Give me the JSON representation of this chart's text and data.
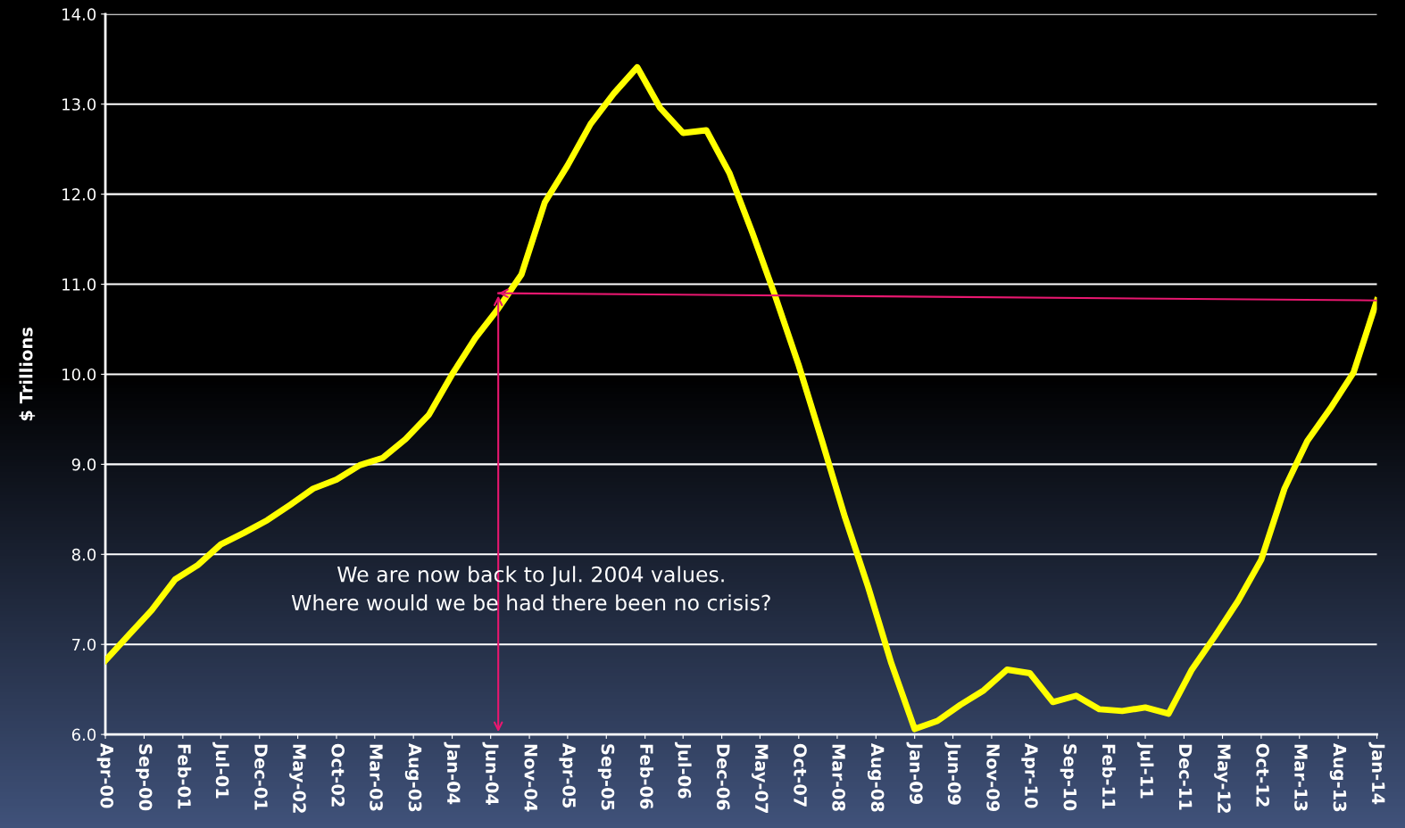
{
  "chart_data": {
    "type": "line",
    "ylabel": "$ Trillions",
    "x": [
      "2000-04",
      "2000-07",
      "2000-10",
      "2001-01",
      "2001-04",
      "2001-07",
      "2001-10",
      "2002-01",
      "2002-04",
      "2002-07",
      "2002-10",
      "2003-01",
      "2003-04",
      "2003-07",
      "2003-10",
      "2004-01",
      "2004-04",
      "2004-07",
      "2004-10",
      "2005-01",
      "2005-04",
      "2005-07",
      "2005-10",
      "2006-01",
      "2006-04",
      "2006-07",
      "2006-10",
      "2007-01",
      "2007-04",
      "2007-07",
      "2007-10",
      "2008-01",
      "2008-04",
      "2008-07",
      "2008-10",
      "2009-01",
      "2009-04",
      "2009-07",
      "2009-10",
      "2010-01",
      "2010-04",
      "2010-07",
      "2010-10",
      "2011-01",
      "2011-04",
      "2011-07",
      "2011-10",
      "2012-01",
      "2012-04",
      "2012-07",
      "2012-10",
      "2013-01",
      "2013-04",
      "2013-07",
      "2013-10",
      "2014-01"
    ],
    "series": [
      {
        "color": "#ffff00",
        "values": [
          6.82,
          7.1,
          7.38,
          7.72,
          7.88,
          8.11,
          8.24,
          8.38,
          8.55,
          8.73,
          8.83,
          8.99,
          9.07,
          9.28,
          9.55,
          10.0,
          10.4,
          10.73,
          11.11,
          11.91,
          12.32,
          12.78,
          13.12,
          13.41,
          12.96,
          12.68,
          12.71,
          12.23,
          11.57,
          10.86,
          10.1,
          9.26,
          8.41,
          7.64,
          6.79,
          6.06,
          6.15,
          6.33,
          6.49,
          6.72,
          6.68,
          6.36,
          6.43,
          6.28,
          6.26,
          6.3,
          6.23,
          6.72,
          7.09,
          7.48,
          7.94,
          8.73,
          9.26,
          9.62,
          10.02,
          10.82
        ]
      },
      {
        "type": "line",
        "color": "#e8176f",
        "x": [
          "2004-07",
          "2014-01"
        ],
        "values": [
          10.9,
          10.82
        ]
      }
    ],
    "xlim": [
      "2000-04",
      "2014-01"
    ],
    "xticks": [
      {
        "value": "2000-04",
        "label": "Apr-00"
      },
      {
        "value": "2000-09",
        "label": "Sep-00"
      },
      {
        "value": "2001-02",
        "label": "Feb-01"
      },
      {
        "value": "2001-07",
        "label": "Jul-01"
      },
      {
        "value": "2001-12",
        "label": "Dec-01"
      },
      {
        "value": "2002-05",
        "label": "May-02"
      },
      {
        "value": "2002-10",
        "label": "Oct-02"
      },
      {
        "value": "2003-03",
        "label": "Mar-03"
      },
      {
        "value": "2003-08",
        "label": "Aug-03"
      },
      {
        "value": "2004-01",
        "label": "Jan-04"
      },
      {
        "value": "2004-06",
        "label": "Jun-04"
      },
      {
        "value": "2004-11",
        "label": "Nov-04"
      },
      {
        "value": "2005-04",
        "label": "Apr-05"
      },
      {
        "value": "2005-09",
        "label": "Sep-05"
      },
      {
        "value": "2006-02",
        "label": "Feb-06"
      },
      {
        "value": "2006-07",
        "label": "Jul-06"
      },
      {
        "value": "2006-12",
        "label": "Dec-06"
      },
      {
        "value": "2007-05",
        "label": "May-07"
      },
      {
        "value": "2007-10",
        "label": "Oct-07"
      },
      {
        "value": "2008-03",
        "label": "Mar-08"
      },
      {
        "value": "2008-08",
        "label": "Aug-08"
      },
      {
        "value": "2009-01",
        "label": "Jan-09"
      },
      {
        "value": "2009-06",
        "label": "Jun-09"
      },
      {
        "value": "2009-11",
        "label": "Nov-09"
      },
      {
        "value": "2010-04",
        "label": "Apr-10"
      },
      {
        "value": "2010-09",
        "label": "Sep-10"
      },
      {
        "value": "2011-02",
        "label": "Feb-11"
      },
      {
        "value": "2011-07",
        "label": "Jul-11"
      },
      {
        "value": "2011-12",
        "label": "Dec-11"
      },
      {
        "value": "2012-05",
        "label": "May-12"
      },
      {
        "value": "2012-10",
        "label": "Oct-12"
      },
      {
        "value": "2013-03",
        "label": "Mar-13"
      },
      {
        "value": "2013-08",
        "label": "Aug-13"
      },
      {
        "value": "2014-01",
        "label": "Jan-14"
      }
    ],
    "ylim": [
      6,
      14
    ],
    "yticks": [
      {
        "value": 6,
        "label": "6.0"
      },
      {
        "value": 7,
        "label": "7.0"
      },
      {
        "value": 8,
        "label": "8.0"
      },
      {
        "value": 9,
        "label": "9.0"
      },
      {
        "value": 10,
        "label": "10.0"
      },
      {
        "value": 11,
        "label": "11.0"
      },
      {
        "value": 12,
        "label": "12.0"
      },
      {
        "value": 13,
        "label": "13.0"
      },
      {
        "value": 14,
        "label": "14.0"
      }
    ],
    "grid": "y",
    "legend": false,
    "marker": "none",
    "line_style": "solid",
    "annotations": [
      "We are now back to Jul. 2004 values.\nWhere would we be had there been no crisis?"
    ]
  }
}
